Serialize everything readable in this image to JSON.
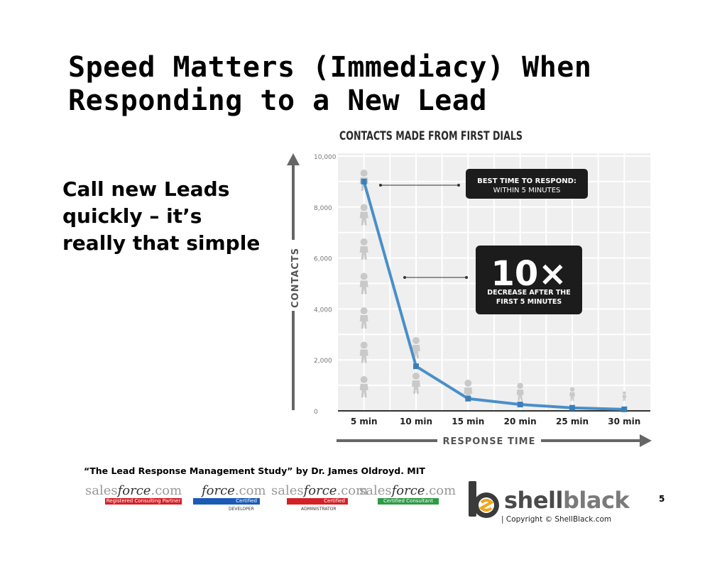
{
  "slide": {
    "title_line1": "Speed Matters (Immediacy) When",
    "title_line2": "Responding to a New Lead",
    "side_text": "Call new Leads quickly – it’s really that simple",
    "citation": "“The Lead Response Management Study” by Dr. James Oldroyd. MIT",
    "page_number": "5",
    "copyright": "| Copyright © ShellBlack.com"
  },
  "brand": {
    "part1": "shell",
    "part2": "black"
  },
  "badges": [
    {
      "logo_prefix": "sales",
      "logo_force": "force",
      "logo_suffix": ".com",
      "bar_text": "Registered Consulting Partner",
      "bar_color": "#d42027",
      "under_text": ""
    },
    {
      "logo_prefix": "",
      "logo_force": "force",
      "logo_suffix": ".com",
      "bar_text": "Certified",
      "bar_color": "#1a5bb5",
      "under_text": "DEVELOPER"
    },
    {
      "logo_prefix": "sales",
      "logo_force": "force",
      "logo_suffix": ".com",
      "bar_text": "Certified",
      "bar_color": "#d42027",
      "under_text": "ADMINISTRATOR"
    },
    {
      "logo_prefix": "sales",
      "logo_force": "force",
      "logo_suffix": ".com",
      "bar_text": "Certified Consultant",
      "bar_color": "#2e9b45",
      "under_text": ""
    }
  ],
  "chart_data": {
    "type": "line",
    "title": "CONTACTS MADE FROM FIRST DIALS",
    "xlabel": "RESPONSE TIME",
    "ylabel": "CONTACTS",
    "categories": [
      "5 min",
      "10 min",
      "15 min",
      "20 min",
      "25 min",
      "30 min"
    ],
    "values": [
      9000,
      1750,
      480,
      250,
      120,
      60
    ],
    "ylim": [
      0,
      10000
    ],
    "yticks": [
      0,
      2000,
      4000,
      6000,
      8000,
      10000
    ],
    "ytick_labels": [
      "0",
      "2,000",
      "4,000",
      "6,000",
      "8,000",
      "10,000"
    ],
    "grid": true,
    "line_color": "#4a8fc8",
    "callouts": [
      {
        "line1": "BEST TIME TO RESPOND:",
        "line2": "WITHIN 5 MINUTES"
      },
      {
        "big": "10×",
        "line1": "DECREASE AFTER THE",
        "line2": "FIRST 5 MINUTES"
      }
    ]
  }
}
